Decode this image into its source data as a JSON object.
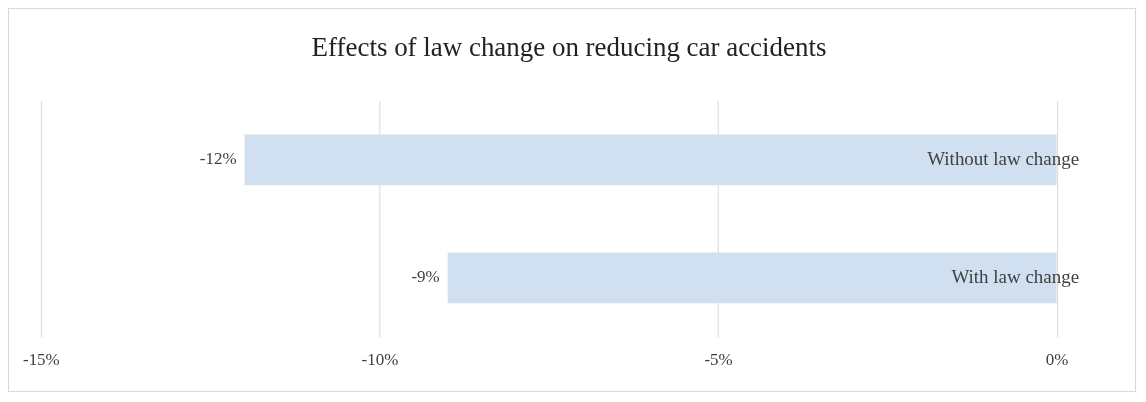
{
  "chart_data": {
    "type": "bar",
    "orientation": "horizontal",
    "title": "Effects of law change on reducing car accidents",
    "categories": [
      "Without law change",
      "With law change"
    ],
    "values": [
      -12,
      -9
    ],
    "color": "#d0e0f1",
    "value_labels": [
      "-12%",
      "-9%"
    ],
    "xlim": [
      -15,
      0
    ],
    "xticks": [
      {
        "value": -15,
        "label": "-15%"
      },
      {
        "value": -10,
        "label": "-10%"
      },
      {
        "value": -5,
        "label": "-5%"
      },
      {
        "value": 0,
        "label": "0%"
      }
    ],
    "grid": "x",
    "legend": false
  }
}
